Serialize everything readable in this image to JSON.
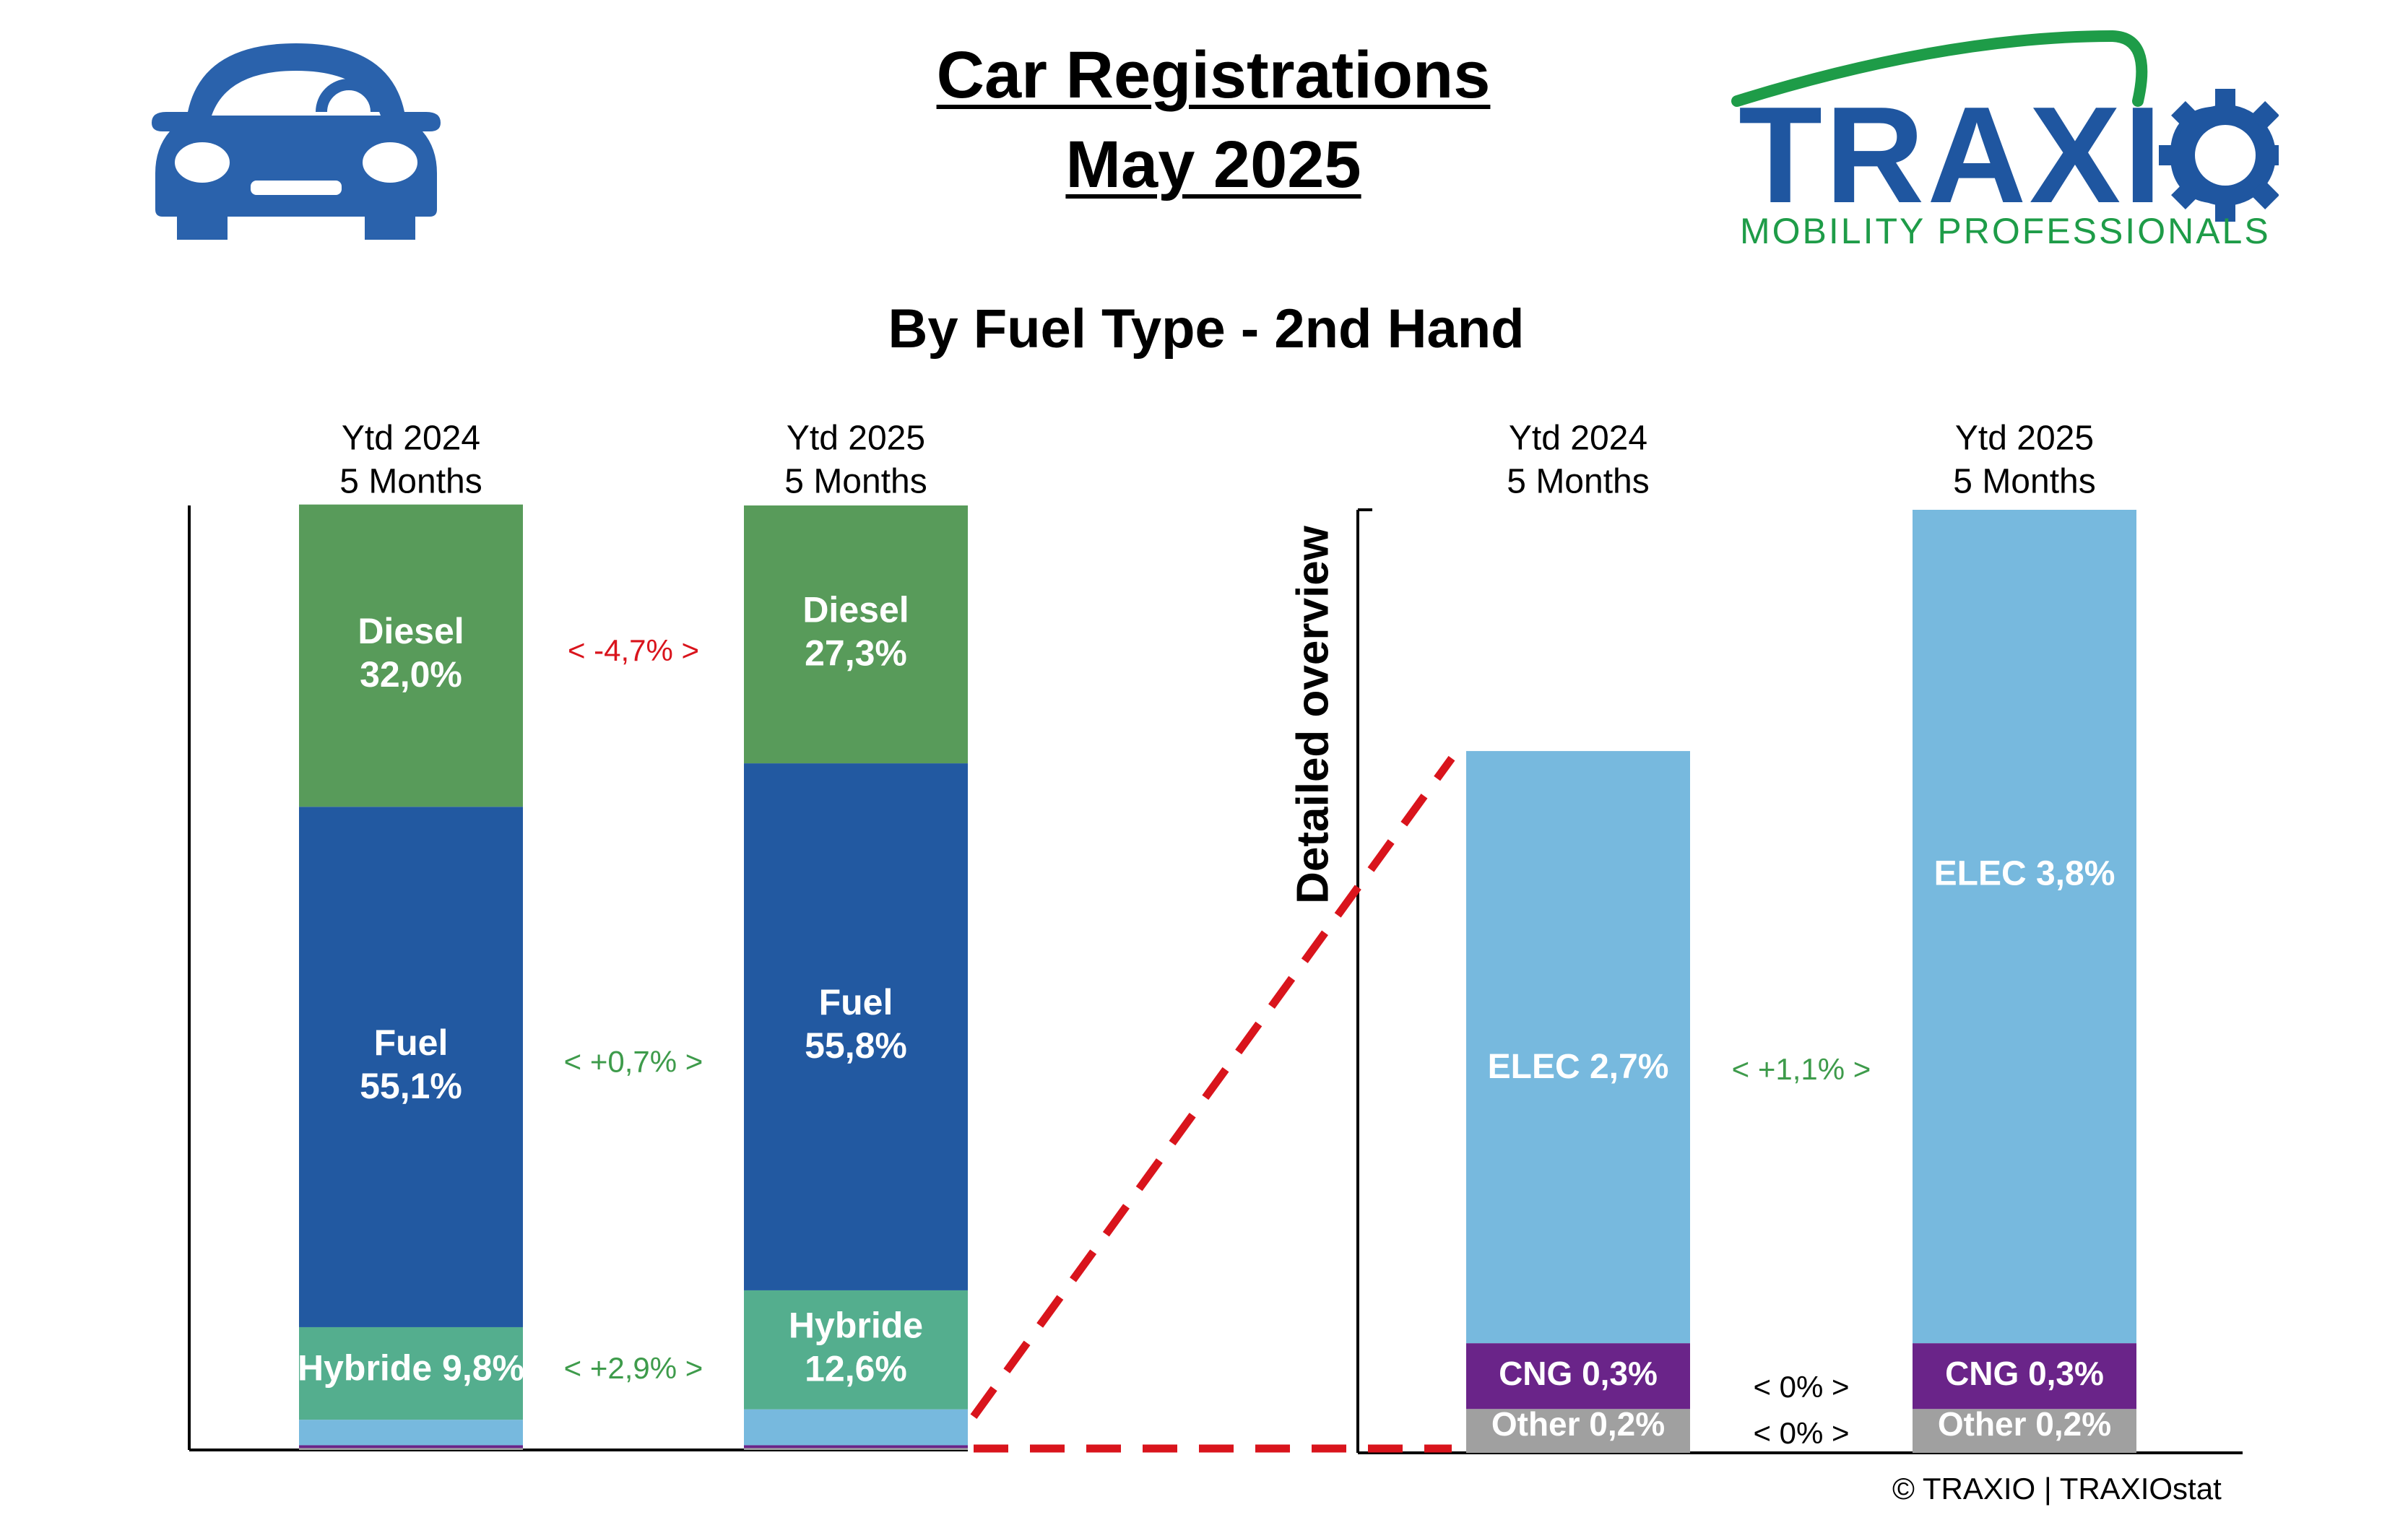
{
  "header": {
    "title_line1": "Car Registrations",
    "title_line2": "May 2025",
    "subtitle": "By Fuel Type - 2nd Hand"
  },
  "logo": {
    "brand": "TRAXIO",
    "tagline": "MOBILITY PROFESSIONALS",
    "colors": {
      "brand": "#1f56a0",
      "tagline": "#1e9c48"
    }
  },
  "icons": {
    "car": "car-icon",
    "gear": "gear-icon"
  },
  "footer": {
    "copyright": "© TRAXIO | TRAXIOstat"
  },
  "colors": {
    "diesel": "#589b5a",
    "fuel": "#2259a1",
    "hybride": "#54ae8e",
    "elec": "#77b9de",
    "cng": "#6a2489",
    "other": "#a0a0a0",
    "negative": "#d9141c",
    "positive": "#3e9b4b",
    "neutral": "#000000",
    "connector": "#d9141c"
  },
  "chart_data": [
    {
      "type": "bar",
      "stacked": true,
      "categories": [
        "Ytd 2024\n5 Months",
        "Ytd 2025\n5 Months"
      ],
      "series": [
        {
          "key": "other",
          "values": [
            0.2,
            0.2
          ]
        },
        {
          "key": "cng",
          "values": [
            0.3,
            0.3
          ]
        },
        {
          "key": "elec",
          "values": [
            2.7,
            3.8
          ]
        },
        {
          "name": "Hybride",
          "key": "hybride",
          "values": [
            9.8,
            12.6
          ]
        },
        {
          "name": "Fuel",
          "key": "fuel",
          "values": [
            55.1,
            55.8
          ]
        },
        {
          "name": "Diesel",
          "key": "diesel",
          "values": [
            32.0,
            27.3
          ]
        }
      ],
      "labels": {
        "ytd2024": [
          "Diesel",
          "32,0%",
          "Fuel",
          "55,1%",
          "Hybride 9,8%"
        ],
        "ytd2025": [
          "Diesel",
          "27,3%",
          "Fuel",
          "55,8%",
          "Hybride",
          "12,6%"
        ]
      },
      "deltas": [
        {
          "series": "Diesel",
          "text": "<  -4,7%  >",
          "sign": "negative"
        },
        {
          "series": "Fuel",
          "text": "<  +0,7%  >",
          "sign": "positive"
        },
        {
          "series": "Hybride",
          "text": "<  +2,9%  >",
          "sign": "positive"
        }
      ],
      "ylim": [
        0,
        100
      ]
    },
    {
      "type": "bar",
      "stacked": true,
      "title": "Detailed overview",
      "categories": [
        "Ytd 2024\n5 Months",
        "Ytd 2025\n5 Months"
      ],
      "series": [
        {
          "name": "Other",
          "key": "other",
          "values": [
            0.2,
            0.2
          ]
        },
        {
          "name": "CNG",
          "key": "cng",
          "values": [
            0.3,
            0.3
          ]
        },
        {
          "name": "ELEC",
          "key": "elec",
          "values": [
            2.7,
            3.8
          ]
        }
      ],
      "labels": {
        "ytd2024": [
          "ELEC 2,7%",
          "CNG 0,3%",
          "Other 0,2%"
        ],
        "ytd2025": [
          "ELEC 3,8%",
          "CNG 0,3%",
          "Other 0,2%"
        ]
      },
      "deltas": [
        {
          "series": "ELEC",
          "text": "<  +1,1%  >",
          "sign": "positive"
        },
        {
          "series": "CNG",
          "text": "<  0%  >",
          "sign": "neutral"
        },
        {
          "series": "Other",
          "text": "<  0%  >",
          "sign": "neutral"
        }
      ],
      "ylim": [
        0,
        4.3
      ]
    }
  ]
}
